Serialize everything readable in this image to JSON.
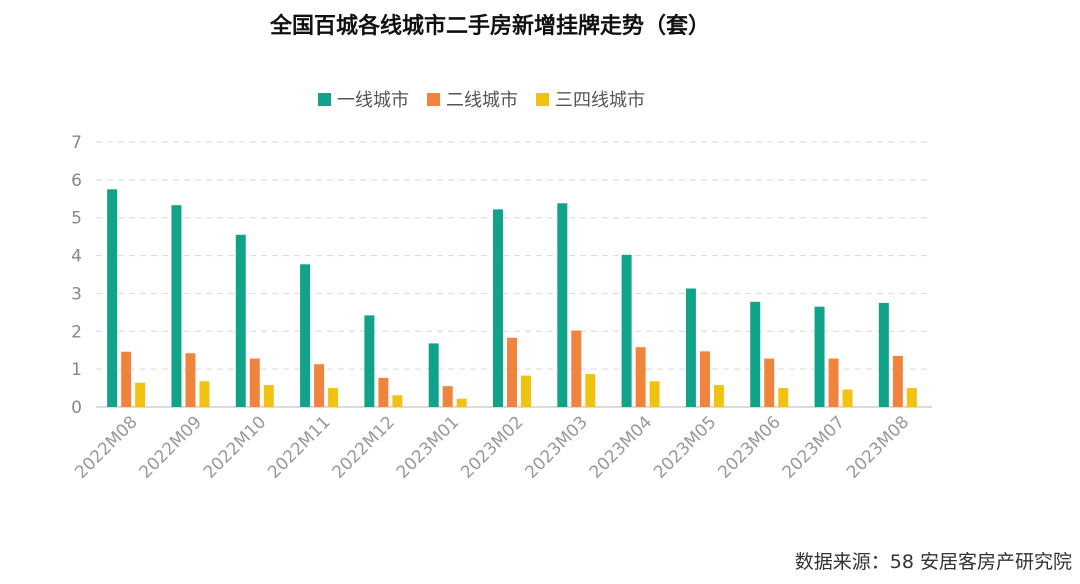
{
  "chart_data": {
    "type": "bar",
    "title": "全国百城各线城市二手房新增挂牌走势（套）",
    "categories": [
      "2022M08",
      "2022M09",
      "2022M10",
      "2022M11",
      "2022M12",
      "2023M01",
      "2023M02",
      "2023M03",
      "2023M04",
      "2023M05",
      "2023M06",
      "2023M07",
      "2023M08"
    ],
    "series": [
      {
        "name": "一线城市",
        "color": "#10a38a",
        "values": [
          5.75,
          5.33,
          4.55,
          3.77,
          2.42,
          1.68,
          5.22,
          5.38,
          4.02,
          3.13,
          2.78,
          2.65,
          2.75
        ]
      },
      {
        "name": "二线城市",
        "color": "#f0843c",
        "values": [
          1.46,
          1.42,
          1.28,
          1.13,
          0.77,
          0.55,
          1.83,
          2.02,
          1.58,
          1.47,
          1.28,
          1.28,
          1.35
        ]
      },
      {
        "name": "三四线城市",
        "color": "#f2c211",
        "values": [
          0.64,
          0.68,
          0.58,
          0.5,
          0.31,
          0.22,
          0.83,
          0.87,
          0.68,
          0.58,
          0.5,
          0.46,
          0.5
        ]
      }
    ],
    "ylim": [
      0,
      7
    ],
    "yticks": [
      "0",
      "1",
      "2",
      "3",
      "4",
      "5",
      "6",
      "7"
    ],
    "grid": true,
    "legend_position": "top-center"
  },
  "source": "数据来源：58 安居客房产研究院"
}
